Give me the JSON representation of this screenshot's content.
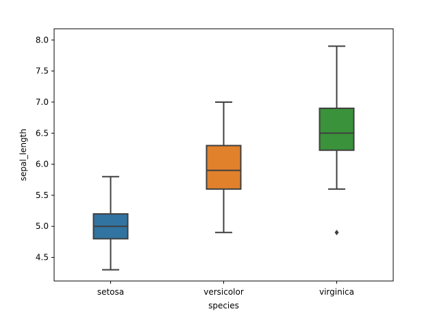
{
  "chart_data": {
    "type": "box",
    "xlabel": "species",
    "ylabel": "sepal_length",
    "ylim": [
      4.12,
      8.18
    ],
    "yticks": [
      4.5,
      5.0,
      5.5,
      6.0,
      6.5,
      7.0,
      7.5,
      8.0
    ],
    "ytick_labels": [
      "4.5",
      "5.0",
      "5.5",
      "6.0",
      "6.5",
      "7.0",
      "7.5",
      "8.0"
    ],
    "grid": false,
    "categories": [
      "setosa",
      "versicolor",
      "virginica"
    ],
    "boxes": [
      {
        "category": "setosa",
        "whisker_low": 4.3,
        "q1": 4.8,
        "median": 5.0,
        "q3": 5.2,
        "whisker_high": 5.8,
        "outliers": [],
        "color": "#3274a1"
      },
      {
        "category": "versicolor",
        "whisker_low": 4.9,
        "q1": 5.6,
        "median": 5.9,
        "q3": 6.3,
        "whisker_high": 7.0,
        "outliers": [],
        "color": "#e1812c"
      },
      {
        "category": "virginica",
        "whisker_low": 5.6,
        "q1": 6.225,
        "median": 6.5,
        "q3": 6.9,
        "whisker_high": 7.9,
        "outliers": [
          4.9
        ],
        "color": "#3a923a"
      }
    ]
  }
}
